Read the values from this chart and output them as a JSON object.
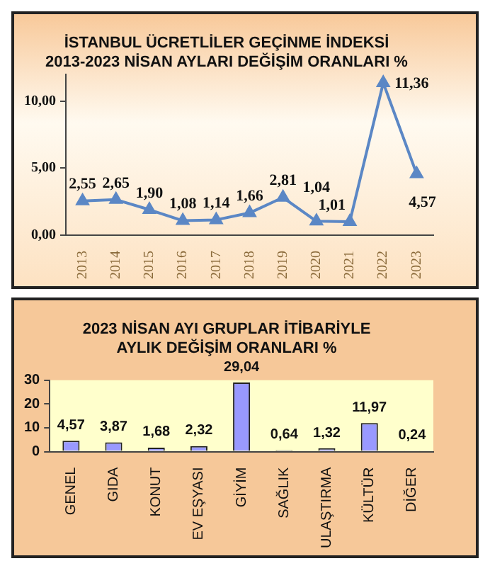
{
  "chart_data": [
    {
      "type": "line",
      "title": "İSTANBUL ÜCRETLİLER GEÇİNME İNDEKSİ\n2013-2023 NİSAN AYLARI DEĞİŞİM ORANLARI %",
      "categories": [
        "2013",
        "2014",
        "2015",
        "2016",
        "2017",
        "2018",
        "2019",
        "2020",
        "2021",
        "2022",
        "2023"
      ],
      "series": [
        {
          "color": "#5b87c5",
          "values": [
            2.55,
            2.65,
            1.9,
            1.08,
            1.14,
            1.66,
            2.81,
            1.04,
            1.01,
            11.36,
            4.57
          ],
          "value_labels": [
            "2,55",
            "2,65",
            "1,90",
            "1,08",
            "1,14",
            "1,66",
            "2,81",
            "1,04",
            "1,01",
            "11,36",
            "4,57"
          ]
        }
      ],
      "ylim": [
        0,
        12
      ],
      "yticks": [
        {
          "value": 0,
          "label": "0,00"
        },
        {
          "value": 5,
          "label": "5,00"
        },
        {
          "value": 10,
          "label": "10,00"
        }
      ],
      "marker": "triangle"
    },
    {
      "type": "bar",
      "title": "2023 NİSAN AYI GRUPLAR İTİBARİYLE\nAYLIK DEĞİŞİM ORANLARI %",
      "categories": [
        "GENEL",
        "GIDA",
        "KONUT",
        "EV EŞYASI",
        "GİYİM",
        "SAĞLIK",
        "ULAŞTIRMA",
        "KÜLTÜR",
        "DİĞER"
      ],
      "series": [
        {
          "color": "#9999ff",
          "values": [
            4.57,
            3.87,
            1.68,
            2.32,
            29.04,
            0.64,
            1.32,
            11.97,
            0.24
          ],
          "value_labels": [
            "4,57",
            "3,87",
            "1,68",
            "2,32",
            "29,04",
            "0,64",
            "1,32",
            "11,97",
            "0,24"
          ]
        }
      ],
      "ylim": [
        0,
        30
      ],
      "yticks": [
        0,
        10,
        20,
        30
      ]
    }
  ]
}
